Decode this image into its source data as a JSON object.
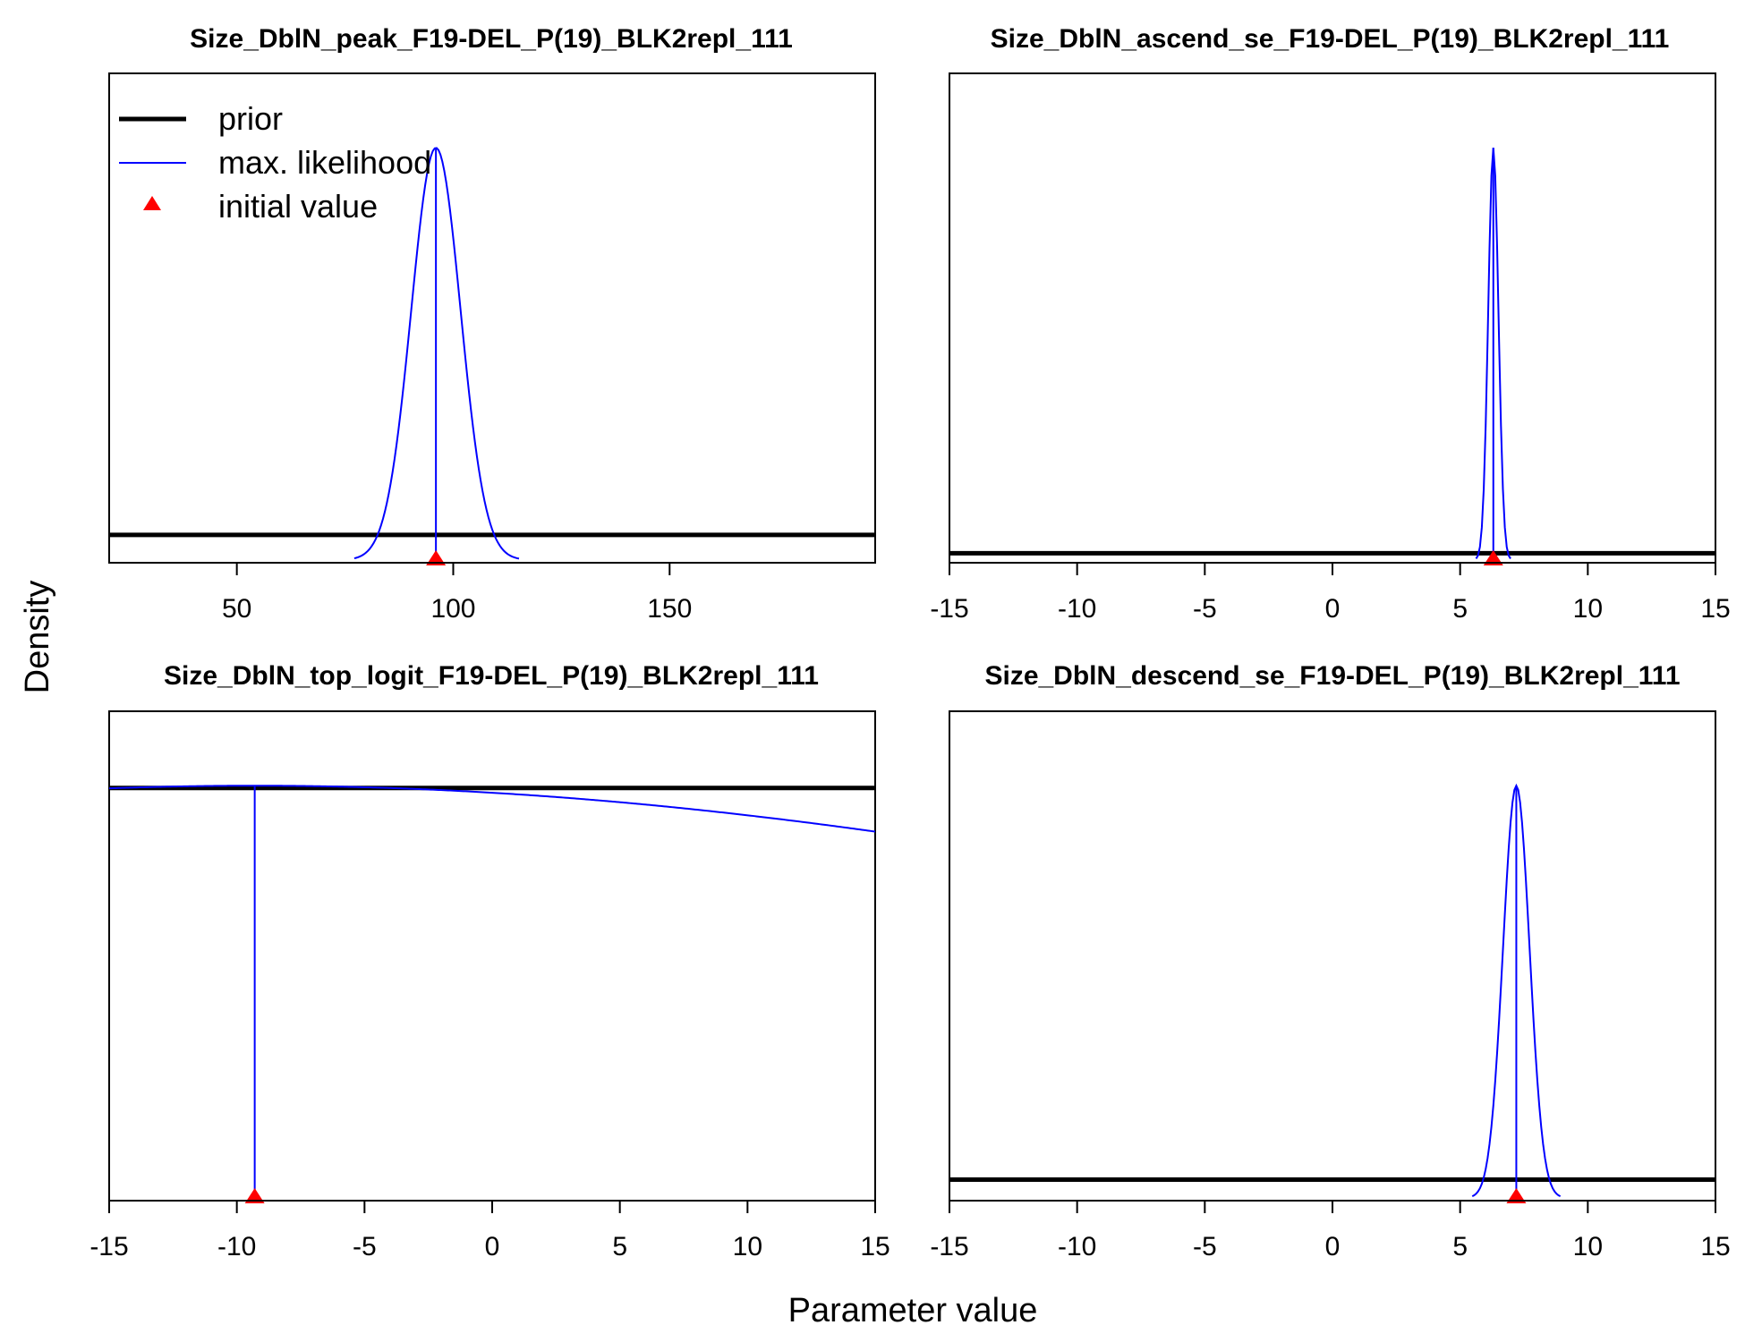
{
  "chart_data": {
    "type": "line",
    "xlabel": "Parameter value",
    "ylabel": "Density",
    "legend": {
      "placement": "top-left of first panel",
      "entries": [
        {
          "label": "prior",
          "color": "#000000",
          "style": "thick-line"
        },
        {
          "label": "max. likelihood",
          "color": "#0000ff",
          "style": "thin-line"
        },
        {
          "label": "initial value",
          "color": "#ff0000",
          "style": "triangle"
        }
      ]
    },
    "colors": {
      "prior": "#000000",
      "mle": "#0000ff",
      "initial": "#ff0000"
    },
    "panels": [
      {
        "title": "Size_DblN_peak_F19-DEL_P(19)_BLK2repl_111",
        "xlim": [
          20.5,
          197.5
        ],
        "xticks": [
          50,
          100,
          150
        ],
        "xtick_labels": [
          "50",
          "100",
          "150"
        ],
        "prior_level": 0.055,
        "mle_mean": 96.0,
        "mle_sd": 5.7,
        "mle_peak": 0.9,
        "initial_value": 96.0
      },
      {
        "title": "Size_DblN_ascend_se_F19-DEL_P(19)_BLK2repl_111",
        "xlim": [
          -15,
          15
        ],
        "xticks": [
          -15,
          -10,
          -5,
          0,
          5,
          10,
          15
        ],
        "xtick_labels": [
          "-15",
          "-10",
          "-5",
          "0",
          "5",
          "10",
          "15"
        ],
        "prior_level": 0.015,
        "mle_mean": 6.3,
        "mle_sd": 0.2,
        "mle_peak": 0.9,
        "initial_value": 6.3
      },
      {
        "title": "Size_DblN_top_logit_F19-DEL_P(19)_BLK2repl_111",
        "xlim": [
          -15,
          15
        ],
        "xticks": [
          -15,
          -10,
          -5,
          0,
          5,
          10,
          15
        ],
        "xtick_labels": [
          "-15",
          "-10",
          "-5",
          "0",
          "5",
          "10",
          "15"
        ],
        "prior_level": 0.895,
        "mle_mean": -9.3,
        "mle_sd": 50.0,
        "mle_peak": 0.9,
        "initial_value": -9.3
      },
      {
        "title": "Size_DblN_descend_se_F19-DEL_P(19)_BLK2repl_111",
        "xlim": [
          -15,
          15
        ],
        "xticks": [
          -15,
          -10,
          -5,
          0,
          5,
          10,
          15
        ],
        "xtick_labels": [
          "-15",
          "-10",
          "-5",
          "0",
          "5",
          "10",
          "15"
        ],
        "prior_level": 0.04,
        "mle_mean": 7.2,
        "mle_sd": 0.52,
        "mle_peak": 0.9,
        "initial_value": 7.2
      }
    ]
  }
}
